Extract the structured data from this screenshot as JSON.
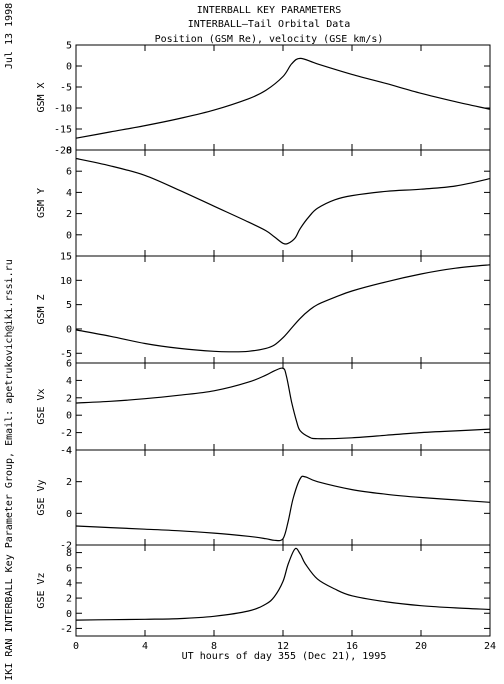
{
  "header": {
    "title_lines": [
      "INTERBALL KEY PARAMETERS",
      "INTERBALL—Tail Orbital Data",
      "Position (GSM Re), velocity (GSE km/s)"
    ],
    "date_label": "Jul 13 1998",
    "credit_label": "IKI RAN INTERBALL Key Parameter Group, Email: apetrukovich@iki.rssi.ru"
  },
  "xaxis": {
    "label": "UT hours of day 355 (Dec 21), 1995",
    "ticks": [
      0,
      4,
      8,
      12,
      16,
      20,
      24
    ],
    "range": [
      0,
      24
    ]
  },
  "colors": {
    "line": "#000000",
    "background": "#ffffff"
  },
  "chart_data": [
    {
      "type": "line",
      "ylabel": "GSM X",
      "ylim": [
        -20,
        5
      ],
      "yticks": [
        5,
        0,
        -5,
        -10,
        -15,
        -20
      ],
      "x": [
        0,
        2,
        4,
        6,
        8,
        10,
        11,
        12,
        12.5,
        13,
        14,
        16,
        18,
        20,
        22,
        24
      ],
      "y": [
        -17.2,
        -15.7,
        -14.2,
        -12.5,
        -10.5,
        -7.8,
        -5.8,
        -2.5,
        0.5,
        1.8,
        0.5,
        -2.0,
        -4.2,
        -6.5,
        -8.5,
        -10.3
      ]
    },
    {
      "type": "line",
      "ylabel": "GSM Y",
      "ylim": [
        -2,
        8
      ],
      "yticks": [
        8,
        6,
        4,
        2,
        0
      ],
      "x": [
        0,
        2,
        4,
        6,
        8,
        10,
        11,
        11.5,
        12,
        12.3,
        12.7,
        13,
        13.5,
        14,
        15,
        16,
        18,
        20,
        22,
        24
      ],
      "y": [
        7.2,
        6.5,
        5.6,
        4.2,
        2.7,
        1.2,
        0.4,
        -0.2,
        -0.8,
        -0.8,
        -0.3,
        0.6,
        1.7,
        2.5,
        3.3,
        3.7,
        4.1,
        4.3,
        4.6,
        5.3
      ]
    },
    {
      "type": "line",
      "ylabel": "GSM Z",
      "ylim": [
        -7,
        15
      ],
      "yticks": [
        15,
        10,
        5,
        0,
        -5
      ],
      "x": [
        0,
        2,
        4,
        6,
        8,
        9,
        10,
        11,
        11.5,
        12,
        12.5,
        13,
        13.5,
        14,
        15,
        16,
        18,
        20,
        22,
        24
      ],
      "y": [
        -0.2,
        -1.5,
        -3.0,
        -4.0,
        -4.6,
        -4.7,
        -4.6,
        -4.0,
        -3.3,
        -1.8,
        0.2,
        2.2,
        3.8,
        5.0,
        6.5,
        7.8,
        9.7,
        11.3,
        12.5,
        13.2
      ]
    },
    {
      "type": "line",
      "ylabel": "GSE Vx",
      "ylim": [
        -4,
        6
      ],
      "yticks": [
        6,
        4,
        2,
        0,
        -2,
        -4
      ],
      "x": [
        0,
        2,
        4,
        6,
        8,
        10,
        11,
        11.5,
        12,
        12.2,
        12.5,
        12.8,
        13,
        13.5,
        14,
        16,
        18,
        20,
        22,
        24
      ],
      "y": [
        1.4,
        1.6,
        1.9,
        2.3,
        2.8,
        3.8,
        4.6,
        5.1,
        5.4,
        4.5,
        1.5,
        -0.8,
        -1.8,
        -2.5,
        -2.7,
        -2.6,
        -2.3,
        -2.0,
        -1.8,
        -1.6
      ]
    },
    {
      "type": "line",
      "ylabel": "GSE Vy",
      "ylim": [
        -2,
        4
      ],
      "yticks": [
        4,
        2,
        0,
        -2
      ],
      "x": [
        0,
        2,
        4,
        6,
        8,
        10,
        11,
        11.5,
        12,
        12.3,
        12.6,
        13,
        13.3,
        14,
        16,
        18,
        20,
        22,
        24
      ],
      "y": [
        -0.8,
        -0.9,
        -1.0,
        -1.1,
        -1.25,
        -1.45,
        -1.6,
        -1.7,
        -1.6,
        -0.5,
        1.0,
        2.2,
        2.3,
        2.0,
        1.5,
        1.2,
        1.0,
        0.85,
        0.7
      ]
    },
    {
      "type": "line",
      "ylabel": "GSE Vz",
      "ylim": [
        -3,
        9
      ],
      "yticks": [
        8,
        6,
        4,
        2,
        0,
        -2
      ],
      "x": [
        0,
        2,
        4,
        6,
        8,
        10,
        11,
        11.5,
        12,
        12.3,
        12.7,
        13,
        13.3,
        14,
        15,
        16,
        18,
        20,
        22,
        24
      ],
      "y": [
        -0.9,
        -0.85,
        -0.8,
        -0.7,
        -0.4,
        0.3,
        1.2,
        2.2,
        4.2,
        6.5,
        8.5,
        7.8,
        6.5,
        4.5,
        3.2,
        2.3,
        1.5,
        1.0,
        0.7,
        0.5
      ]
    }
  ]
}
